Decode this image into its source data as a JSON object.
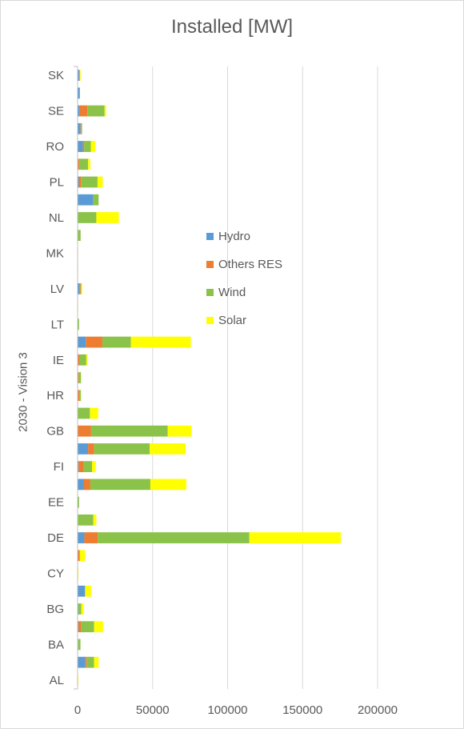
{
  "chart_data": {
    "type": "bar",
    "orientation": "horizontal",
    "stacked": true,
    "title": "Installed [MW]",
    "ylabel": "2030 - Vision 3",
    "xlabel": "",
    "xlim": [
      0,
      200000
    ],
    "xticks": [
      "0",
      "50000",
      "100000",
      "150000",
      "200000"
    ],
    "grid": true,
    "legend_position": "right",
    "category_labels": [
      "SK",
      "SE",
      "RO",
      "PL",
      "NL",
      "MK",
      "LV",
      "LT",
      "IE",
      "HR",
      "GB",
      "FI",
      "EE",
      "DE",
      "CY",
      "BG",
      "BA",
      "AL"
    ],
    "categories": [
      "SK",
      "",
      "SE",
      "",
      "RO",
      "",
      "PL",
      "",
      "NL",
      "",
      "MK",
      "",
      "LV",
      "",
      "LT",
      "",
      "IE",
      "",
      "HR",
      "",
      "GB",
      "",
      "FI",
      "",
      "EE",
      "",
      "DE",
      "",
      "CY",
      "",
      "BG",
      "",
      "BA",
      "",
      "AL"
    ],
    "series": [
      {
        "name": "Hydro",
        "color": "#5b9bd5",
        "values": [
          1000,
          1500,
          1500,
          2000,
          3500,
          0,
          800,
          10500,
          0,
          0,
          0,
          0,
          1500,
          0,
          0,
          5500,
          300,
          200,
          300,
          0,
          0,
          7000,
          600,
          4000,
          0,
          0,
          4500,
          0,
          0,
          5000,
          500,
          500,
          400,
          5000,
          0
        ]
      },
      {
        "name": "Others RES",
        "color": "#ed7d31",
        "values": [
          500,
          0,
          5000,
          500,
          800,
          1000,
          1500,
          0,
          0,
          0,
          0,
          0,
          500,
          0,
          0,
          11000,
          1000,
          500,
          800,
          200,
          9000,
          4000,
          3500,
          4500,
          0,
          0,
          9000,
          1500,
          0,
          0,
          0,
          2000,
          0,
          1000,
          0
        ]
      },
      {
        "name": "Wind",
        "color": "#8bc34a",
        "values": [
          0,
          0,
          11500,
          500,
          4500,
          6000,
          11000,
          3500,
          12500,
          2000,
          0,
          0,
          500,
          0,
          1000,
          19000,
          4500,
          1500,
          1000,
          8000,
          51000,
          37000,
          5500,
          40000,
          1000,
          10500,
          101000,
          0,
          0,
          0,
          2000,
          8500,
          1500,
          5000,
          0
        ]
      },
      {
        "name": "Solar",
        "color": "#ffff00",
        "values": [
          500,
          0,
          1000,
          0,
          3000,
          1500,
          3500,
          0,
          15000,
          0,
          300,
          300,
          500,
          300,
          0,
          40000,
          1000,
          300,
          200,
          5500,
          16000,
          24000,
          2500,
          24000,
          0,
          2000,
          61000,
          3500,
          500,
          4000,
          1500,
          6000,
          0,
          3000,
          500
        ]
      }
    ]
  }
}
